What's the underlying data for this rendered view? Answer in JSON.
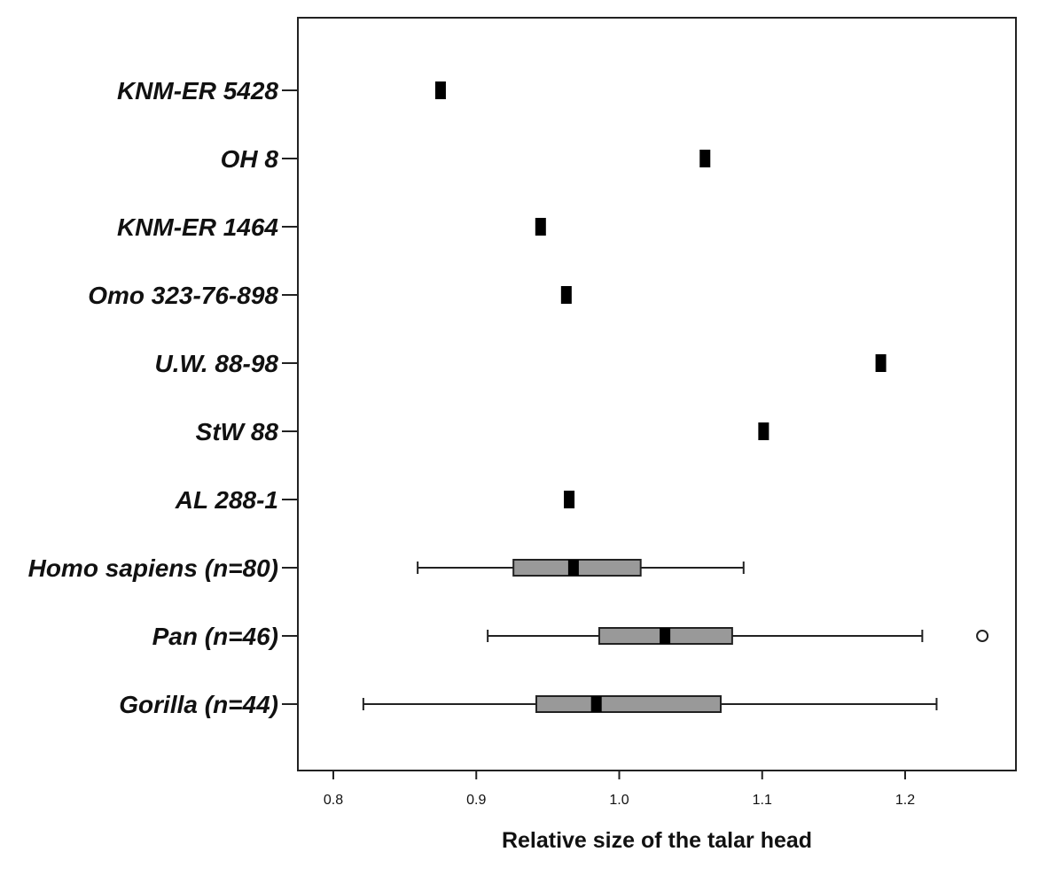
{
  "chart_data": {
    "type": "boxplot",
    "title": "",
    "xlabel": "Relative size of the talar head",
    "ylabel": "",
    "xlim": [
      0.78,
      1.28
    ],
    "xticks": [
      0.8,
      0.9,
      1.0,
      1.1,
      1.2
    ],
    "xtick_labels": [
      "0.8",
      "0.9",
      "1.0",
      "1.1",
      "1.2"
    ],
    "grid": false,
    "categories": [
      "KNM-ER 5428",
      "OH 8",
      "KNM-ER 1464",
      "Omo 323-76-898",
      "U.W. 88-98",
      "StW 88",
      "AL 288-1",
      "Homo sapiens (n=80)",
      "Pan (n=46)",
      "Gorilla (n=44)"
    ],
    "specimens": [
      {
        "label": "KNM-ER 5428",
        "value": 0.875
      },
      {
        "label": "OH 8",
        "value": 1.06
      },
      {
        "label": "KNM-ER 1464",
        "value": 0.945
      },
      {
        "label": "Omo 323-76-898",
        "value": 0.963
      },
      {
        "label": "U.W. 88-98",
        "value": 1.183
      },
      {
        "label": "StW 88",
        "value": 1.101
      },
      {
        "label": "AL 288-1",
        "value": 0.965
      }
    ],
    "boxes": [
      {
        "label": "Homo sapiens (n=80)",
        "whisker_low": 0.859,
        "q1": 0.926,
        "median": 0.968,
        "q3": 1.015,
        "whisker_high": 1.087,
        "outliers": []
      },
      {
        "label": "Pan (n=46)",
        "whisker_low": 0.908,
        "q1": 0.986,
        "median": 1.032,
        "q3": 1.079,
        "whisker_high": 1.212,
        "outliers": [
          1.254
        ]
      },
      {
        "label": "Gorilla (n=44)",
        "whisker_low": 0.821,
        "q1": 0.942,
        "median": 0.984,
        "q3": 1.071,
        "whisker_high": 1.222,
        "outliers": []
      }
    ],
    "colors": {
      "box_fill": "#999999",
      "marker": "#000000",
      "axis": "#222222"
    }
  }
}
